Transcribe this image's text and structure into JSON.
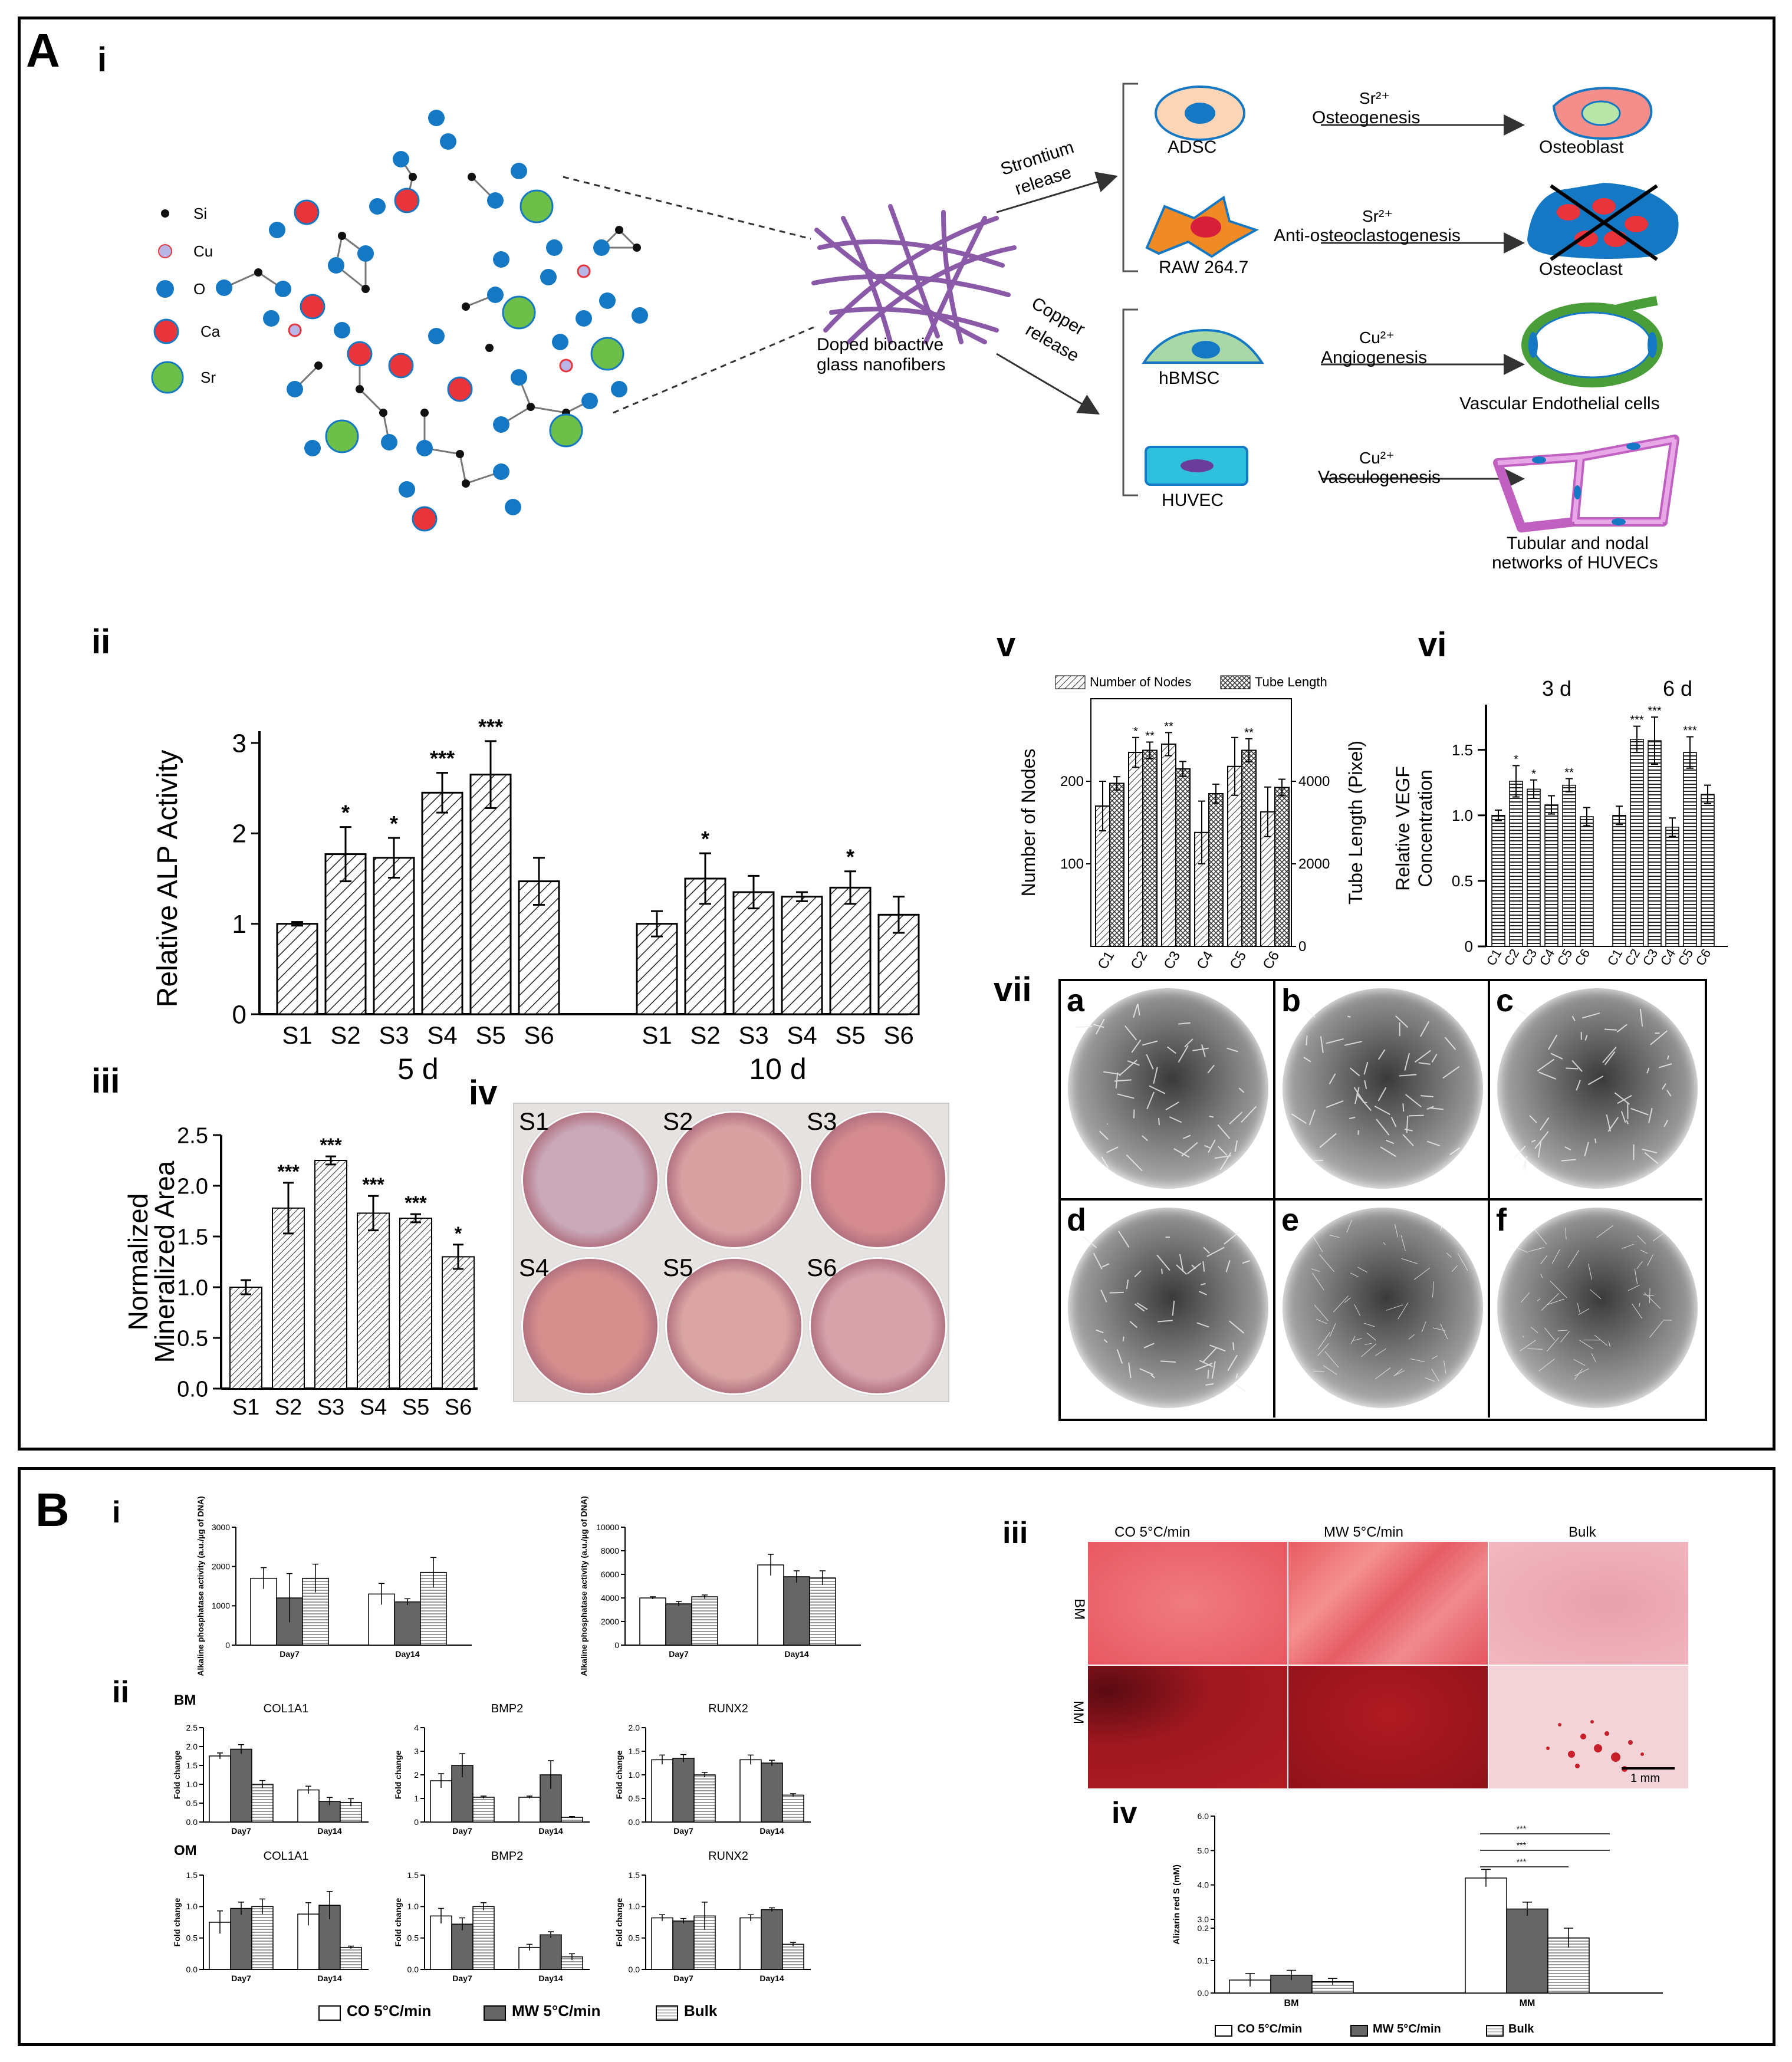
{
  "panelA": {
    "label": "A",
    "i": {
      "label": "i",
      "legend": [
        {
          "name": "Si",
          "color": "#111111"
        },
        {
          "name": "Cu",
          "color": "#b8b6e6"
        },
        {
          "name": "O",
          "color": "#1478c4"
        },
        {
          "name": "Ca",
          "color": "#e8343a"
        },
        {
          "name": "Sr",
          "color": "#6cc04a"
        }
      ],
      "fibers_label_1": "Doped bioactive",
      "fibers_label_2": "glass nanofibers",
      "sr_release_1": "Strontium",
      "sr_release_2": "release",
      "cu_release_1": "Copper",
      "cu_release_2": "release",
      "adsc": "ADSC",
      "raw": "RAW 264.7",
      "hbmsc": "hBMSC",
      "huvec": "HUVEC",
      "sr_ion": "Sr²⁺",
      "cu_ion": "Cu²⁺",
      "osteogenesis": "Osteogenesis",
      "anti_osteoclastogenesis": "Anti-osteoclastogenesis",
      "angiogenesis": "Angiogenesis",
      "vasculogenesis": "Vasculogenesis",
      "osteoblast": "Osteoblast",
      "osteoclast": "Osteoclast",
      "vascular": "Vascular Endothelial cells",
      "tubular_1": "Tubular and nodal",
      "tubular_2": "networks of HUVECs"
    },
    "ii_label": "ii",
    "iii_label": "iii",
    "iv_label": "iv",
    "v_label": "v",
    "vi_label": "vi",
    "vii_label": "vii",
    "iv_wells": [
      "S1",
      "S2",
      "S3",
      "S4",
      "S5",
      "S6"
    ],
    "vii_wells": [
      "a",
      "b",
      "c",
      "d",
      "e",
      "f"
    ]
  },
  "panelB": {
    "label": "B",
    "i_label": "i",
    "ii_label": "ii",
    "iii_label": "iii",
    "iv_label": "iv",
    "iii_cols": [
      "CO 5°C/min",
      "MW 5°C/min",
      "Bulk"
    ],
    "iii_rows": [
      "BM",
      "MM"
    ],
    "scale": "1 mm",
    "legend": [
      "CO 5°C/min",
      "MW 5°C/min",
      "Bulk"
    ],
    "legend_colors": [
      "#ffffff",
      "#666666",
      "#cccccc"
    ],
    "ii_bm": "BM",
    "ii_om": "OM"
  },
  "chart_data": [
    {
      "id": "A-ii",
      "type": "bar",
      "ylabel": "Relative ALP Activity",
      "ylim": [
        0,
        3
      ],
      "yticks": [
        0,
        1,
        2,
        3
      ],
      "groups": [
        {
          "name": "5 d",
          "categories": [
            "S1",
            "S2",
            "S3",
            "S4",
            "S5",
            "S6"
          ],
          "values": [
            1.0,
            1.77,
            1.73,
            2.45,
            2.65,
            1.47
          ],
          "errors": [
            0.02,
            0.3,
            0.22,
            0.22,
            0.37,
            0.26
          ],
          "sig": [
            "",
            "*",
            "*",
            "***",
            "***",
            ""
          ]
        },
        {
          "name": "10 d",
          "categories": [
            "S1",
            "S2",
            "S3",
            "S4",
            "S5",
            "S6"
          ],
          "values": [
            1.0,
            1.5,
            1.35,
            1.3,
            1.4,
            1.1
          ],
          "errors": [
            0.14,
            0.28,
            0.18,
            0.05,
            0.18,
            0.2
          ],
          "sig": [
            "",
            "*",
            "",
            "",
            "*",
            ""
          ]
        }
      ]
    },
    {
      "id": "A-iii",
      "type": "bar",
      "ylabel": "Normalized Mineralized Area",
      "ylim": [
        0,
        2.5
      ],
      "yticks": [
        "0.0",
        "0.5",
        "1.0",
        "1.5",
        "2.0",
        "2.5"
      ],
      "categories": [
        "S1",
        "S2",
        "S3",
        "S4",
        "S5",
        "S6"
      ],
      "values": [
        1.0,
        1.78,
        2.25,
        1.73,
        1.68,
        1.3
      ],
      "errors": [
        0.07,
        0.25,
        0.04,
        0.17,
        0.04,
        0.12
      ],
      "sig": [
        "",
        "***",
        "***",
        "***",
        "***",
        "*"
      ]
    },
    {
      "id": "A-v",
      "type": "bar",
      "series": [
        {
          "name": "Number of Nodes",
          "values": [
            170,
            235,
            245,
            138,
            218,
            163
          ],
          "errors": [
            30,
            18,
            14,
            38,
            35,
            30
          ],
          "sig": [
            "",
            "*",
            "**",
            "",
            "",
            ""
          ]
        },
        {
          "name": "Tube Length",
          "values": [
            3950,
            4750,
            4300,
            3700,
            4750,
            3850
          ],
          "errors": [
            160,
            200,
            180,
            230,
            280,
            200
          ],
          "sig": [
            "",
            "**",
            "",
            "",
            "**",
            ""
          ]
        }
      ],
      "categories": [
        "C1",
        "C2",
        "C3",
        "C4",
        "C5",
        "C6"
      ],
      "ylabel": "Number of Nodes",
      "y2label": "Tube Length (Pixel)",
      "ylim": [
        0,
        300
      ],
      "yticks": [
        100,
        200
      ],
      "y2lim": [
        0,
        6000
      ],
      "y2ticks": [
        0,
        2000,
        4000
      ]
    },
    {
      "id": "A-vi",
      "type": "bar",
      "ylabel": "Relative VEGF Concentration",
      "ylim": [
        0,
        1.8
      ],
      "yticks": [
        "0",
        "0.5",
        "1.0",
        "1.5"
      ],
      "groups": [
        {
          "name": "3 d",
          "categories": [
            "C1",
            "C2",
            "C3",
            "C4",
            "C5",
            "C6"
          ],
          "values": [
            1.0,
            1.26,
            1.2,
            1.08,
            1.23,
            0.99
          ],
          "errors": [
            0.04,
            0.12,
            0.07,
            0.07,
            0.05,
            0.07
          ],
          "sig": [
            "",
            "*",
            "*",
            "",
            "**",
            ""
          ]
        },
        {
          "name": "6 d",
          "categories": [
            "C1",
            "C2",
            "C3",
            "C4",
            "C5",
            "C6"
          ],
          "values": [
            1.0,
            1.58,
            1.57,
            0.91,
            1.48,
            1.16
          ],
          "errors": [
            0.07,
            0.1,
            0.18,
            0.07,
            0.12,
            0.07
          ],
          "sig": [
            "",
            "***",
            "***",
            "",
            "***",
            ""
          ]
        }
      ]
    },
    {
      "id": "B-i-a",
      "type": "bar",
      "ylabel": "Alkaline phosphatase activity (a.u./µg of DNA)",
      "ylim": [
        0,
        3000
      ],
      "yticks": [
        "0",
        "1000",
        "2000",
        "3000"
      ],
      "categories": [
        "Day7",
        "Day14"
      ],
      "series": [
        {
          "name": "CO 5°C/min",
          "values": [
            1700,
            1300
          ],
          "errors": [
            270,
            270
          ]
        },
        {
          "name": "MW 5°C/min",
          "values": [
            1200,
            1100
          ],
          "errors": [
            620,
            80
          ]
        },
        {
          "name": "Bulk",
          "values": [
            1700,
            1850
          ],
          "errors": [
            360,
            380
          ]
        }
      ]
    },
    {
      "id": "B-i-b",
      "type": "bar",
      "ylabel": "Alkaline phosphatase activity (a.u./µg of DNA)",
      "ylim": [
        0,
        10000
      ],
      "yticks": [
        "0",
        "2000",
        "4000",
        "6000",
        "8000",
        "10000"
      ],
      "categories": [
        "Day7",
        "Day14"
      ],
      "series": [
        {
          "name": "CO 5°C/min",
          "values": [
            4000,
            6800
          ],
          "errors": [
            100,
            900
          ]
        },
        {
          "name": "MW 5°C/min",
          "values": [
            3500,
            5800
          ],
          "errors": [
            200,
            500
          ]
        },
        {
          "name": "Bulk",
          "values": [
            4100,
            5700
          ],
          "errors": [
            150,
            600
          ]
        }
      ]
    },
    {
      "id": "B-ii-BM-COL1A1",
      "type": "bar",
      "title": "COL1A1",
      "ylabel": "Fold change",
      "ylim": [
        0,
        2.5
      ],
      "yticks": [
        "0.0",
        "0.5",
        "1.0",
        "1.5",
        "2.0",
        "2.5"
      ],
      "categories": [
        "Day7",
        "Day14"
      ],
      "series": [
        {
          "name": "CO 5°C/min",
          "values": [
            1.75,
            0.85
          ],
          "errors": [
            0.08,
            0.1
          ]
        },
        {
          "name": "MW 5°C/min",
          "values": [
            1.93,
            0.55
          ],
          "errors": [
            0.12,
            0.1
          ]
        },
        {
          "name": "Bulk",
          "values": [
            1.0,
            0.52
          ],
          "errors": [
            0.1,
            0.1
          ]
        }
      ]
    },
    {
      "id": "B-ii-BM-BMP2",
      "type": "bar",
      "title": "BMP2",
      "ylabel": "Fold change",
      "ylim": [
        0,
        4
      ],
      "yticks": [
        "0",
        "1",
        "2",
        "3",
        "4"
      ],
      "categories": [
        "Day7",
        "Day14"
      ],
      "series": [
        {
          "name": "CO 5°C/min",
          "values": [
            1.75,
            1.05
          ],
          "errors": [
            0.3,
            0.05
          ]
        },
        {
          "name": "MW 5°C/min",
          "values": [
            2.4,
            2.0
          ],
          "errors": [
            0.5,
            0.6
          ]
        },
        {
          "name": "Bulk",
          "values": [
            1.05,
            0.2
          ],
          "errors": [
            0.05,
            0.03
          ]
        }
      ]
    },
    {
      "id": "B-ii-BM-RUNX2",
      "type": "bar",
      "title": "RUNX2",
      "ylabel": "Fold change",
      "ylim": [
        0,
        2.0
      ],
      "yticks": [
        "0.0",
        "0.5",
        "1.0",
        "1.5",
        "2.0"
      ],
      "categories": [
        "Day7",
        "Day14"
      ],
      "series": [
        {
          "name": "CO 5°C/min",
          "values": [
            1.32,
            1.32
          ],
          "errors": [
            0.1,
            0.1
          ]
        },
        {
          "name": "MW 5°C/min",
          "values": [
            1.35,
            1.25
          ],
          "errors": [
            0.08,
            0.06
          ]
        },
        {
          "name": "Bulk",
          "values": [
            1.0,
            0.57
          ],
          "errors": [
            0.05,
            0.03
          ]
        }
      ]
    },
    {
      "id": "B-ii-OM-COL1A1",
      "type": "bar",
      "title": "COL1A1",
      "ylabel": "Fold change",
      "ylim": [
        0,
        1.5
      ],
      "yticks": [
        "0.0",
        "0.5",
        "1.0",
        "1.5"
      ],
      "categories": [
        "Day7",
        "Day14"
      ],
      "series": [
        {
          "name": "CO 5°C/min",
          "values": [
            0.75,
            0.88
          ],
          "errors": [
            0.18,
            0.18
          ]
        },
        {
          "name": "MW 5°C/min",
          "values": [
            0.97,
            1.02
          ],
          "errors": [
            0.1,
            0.22
          ]
        },
        {
          "name": "Bulk",
          "values": [
            1.0,
            0.35
          ],
          "errors": [
            0.12,
            0.02
          ]
        }
      ]
    },
    {
      "id": "B-ii-OM-BMP2",
      "type": "bar",
      "title": "BMP2",
      "ylabel": "Fold change",
      "ylim": [
        0,
        1.5
      ],
      "yticks": [
        "0.0",
        "0.5",
        "1.0",
        "1.5"
      ],
      "categories": [
        "Day7",
        "Day14"
      ],
      "series": [
        {
          "name": "CO 5°C/min",
          "values": [
            0.85,
            0.35
          ],
          "errors": [
            0.12,
            0.05
          ]
        },
        {
          "name": "MW 5°C/min",
          "values": [
            0.72,
            0.55
          ],
          "errors": [
            0.1,
            0.05
          ]
        },
        {
          "name": "Bulk",
          "values": [
            1.0,
            0.2
          ],
          "errors": [
            0.06,
            0.05
          ]
        }
      ]
    },
    {
      "id": "B-ii-OM-RUNX2",
      "type": "bar",
      "title": "RUNX2",
      "ylabel": "Fold change",
      "ylim": [
        0,
        1.5
      ],
      "yticks": [
        "0.0",
        "0.5",
        "1.0",
        "1.5"
      ],
      "categories": [
        "Day7",
        "Day14"
      ],
      "series": [
        {
          "name": "CO 5°C/min",
          "values": [
            0.82,
            0.82
          ],
          "errors": [
            0.05,
            0.05
          ]
        },
        {
          "name": "MW 5°C/min",
          "values": [
            0.77,
            0.95
          ],
          "errors": [
            0.04,
            0.03
          ]
        },
        {
          "name": "Bulk",
          "values": [
            0.85,
            0.4
          ],
          "errors": [
            0.22,
            0.03
          ]
        }
      ]
    },
    {
      "id": "B-iv",
      "type": "bar",
      "ylabel": "Alizarin red S (mM)",
      "yticks": [
        "0.0",
        "0.1",
        "0.2",
        "3.0",
        "4.0",
        "5.0",
        "6.0"
      ],
      "categories": [
        "BM",
        "MM"
      ],
      "series": [
        {
          "name": "CO 5°C/min",
          "values": [
            0.04,
            4.2
          ],
          "errors": [
            0.02,
            0.25
          ]
        },
        {
          "name": "MW 5°C/min",
          "values": [
            0.055,
            3.3
          ],
          "errors": [
            0.015,
            0.2
          ]
        },
        {
          "name": "Bulk",
          "values": [
            0.035,
            0.17
          ],
          "errors": [
            0.01,
            0.03
          ]
        }
      ]
    }
  ]
}
